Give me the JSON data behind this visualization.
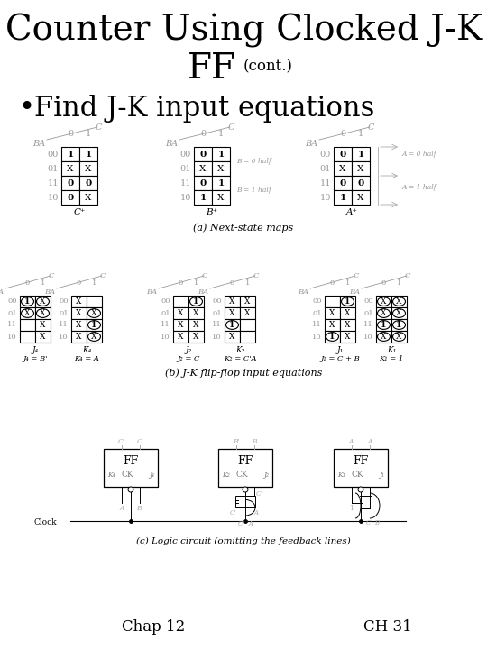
{
  "title_line1": "Counter Using Clocked J-K",
  "title_line2": "FF",
  "title_cont": "(cont.)",
  "bullet": "Find J-K input equations",
  "footer_left": "Chap 12",
  "footer_right": "CH 31",
  "bg_color": "#ffffff",
  "title_fontsize": 28,
  "bullet_fontsize": 22,
  "footer_fontsize": 12,
  "caption_a": "(a) Next-state maps",
  "caption_b": "(b) J-K flip-flop input equations",
  "caption_c": "(c) Logic circuit (omitting the feedback lines)"
}
